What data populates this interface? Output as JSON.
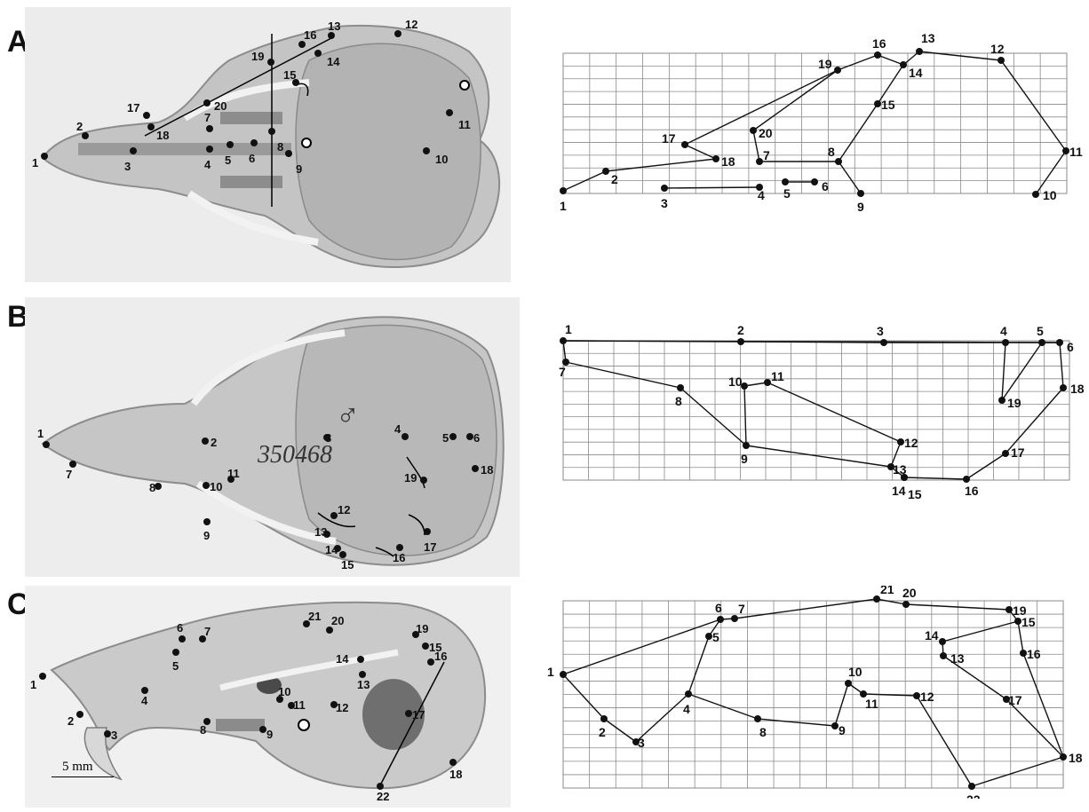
{
  "panels": [
    {
      "letter": "A",
      "photo_points": [
        {
          "label": "1"
        },
        {
          "label": "2"
        },
        {
          "label": "3"
        },
        {
          "label": "4"
        },
        {
          "label": "5"
        },
        {
          "label": "6"
        },
        {
          "label": "7"
        },
        {
          "label": "8"
        },
        {
          "label": "9"
        },
        {
          "label": "10"
        },
        {
          "label": "11"
        },
        {
          "label": "12"
        },
        {
          "label": "13"
        },
        {
          "label": "14"
        },
        {
          "label": "15"
        },
        {
          "label": "16"
        },
        {
          "label": "17"
        },
        {
          "label": "18"
        },
        {
          "label": "19"
        },
        {
          "label": "20"
        }
      ],
      "grid_points": [
        {
          "label": "1"
        },
        {
          "label": "2"
        },
        {
          "label": "3"
        },
        {
          "label": "4"
        },
        {
          "label": "5"
        },
        {
          "label": "6"
        },
        {
          "label": "7"
        },
        {
          "label": "8"
        },
        {
          "label": "9"
        },
        {
          "label": "10"
        },
        {
          "label": "11"
        },
        {
          "label": "12"
        },
        {
          "label": "13"
        },
        {
          "label": "14"
        },
        {
          "label": "15"
        },
        {
          "label": "16"
        },
        {
          "label": "17"
        },
        {
          "label": "18"
        },
        {
          "label": "19"
        },
        {
          "label": "20"
        }
      ]
    },
    {
      "letter": "B",
      "specimen_label": "350468",
      "sex_symbol": "♂",
      "photo_points": [
        {
          "label": "1"
        },
        {
          "label": "2"
        },
        {
          "label": "3"
        },
        {
          "label": "4"
        },
        {
          "label": "5"
        },
        {
          "label": "6"
        },
        {
          "label": "7"
        },
        {
          "label": "8"
        },
        {
          "label": "9"
        },
        {
          "label": "10"
        },
        {
          "label": "11"
        },
        {
          "label": "12"
        },
        {
          "label": "13"
        },
        {
          "label": "14"
        },
        {
          "label": "15"
        },
        {
          "label": "16"
        },
        {
          "label": "17"
        },
        {
          "label": "18"
        },
        {
          "label": "19"
        }
      ],
      "grid_points": [
        {
          "label": "1"
        },
        {
          "label": "2"
        },
        {
          "label": "3"
        },
        {
          "label": "4"
        },
        {
          "label": "5"
        },
        {
          "label": "6"
        },
        {
          "label": "7"
        },
        {
          "label": "8"
        },
        {
          "label": "9"
        },
        {
          "label": "10"
        },
        {
          "label": "11"
        },
        {
          "label": "12"
        },
        {
          "label": "13"
        },
        {
          "label": "14"
        },
        {
          "label": "15"
        },
        {
          "label": "16"
        },
        {
          "label": "17"
        },
        {
          "label": "18"
        },
        {
          "label": "19"
        }
      ]
    },
    {
      "letter": "C",
      "photo_points": [
        {
          "label": "1"
        },
        {
          "label": "2"
        },
        {
          "label": "3"
        },
        {
          "label": "4"
        },
        {
          "label": "5"
        },
        {
          "label": "6"
        },
        {
          "label": "7"
        },
        {
          "label": "8"
        },
        {
          "label": "9"
        },
        {
          "label": "10"
        },
        {
          "label": "11"
        },
        {
          "label": "12"
        },
        {
          "label": "13"
        },
        {
          "label": "14"
        },
        {
          "label": "15"
        },
        {
          "label": "16"
        },
        {
          "label": "17"
        },
        {
          "label": "18"
        },
        {
          "label": "19"
        },
        {
          "label": "20"
        },
        {
          "label": "21"
        },
        {
          "label": "22"
        }
      ],
      "grid_points": [
        {
          "label": "1"
        },
        {
          "label": "2"
        },
        {
          "label": "3"
        },
        {
          "label": "4"
        },
        {
          "label": "5"
        },
        {
          "label": "6"
        },
        {
          "label": "7"
        },
        {
          "label": "8"
        },
        {
          "label": "9"
        },
        {
          "label": "10"
        },
        {
          "label": "11"
        },
        {
          "label": "12"
        },
        {
          "label": "13"
        },
        {
          "label": "14"
        },
        {
          "label": "15"
        },
        {
          "label": "16"
        },
        {
          "label": "17"
        },
        {
          "label": "18"
        },
        {
          "label": "19"
        },
        {
          "label": "20"
        },
        {
          "label": "21"
        },
        {
          "label": "22"
        }
      ]
    }
  ],
  "scale_bar": {
    "label": "5 mm"
  },
  "colors": {
    "point": "#111111",
    "grid": "#8a8a8a",
    "line": "#111111",
    "photo_bg": "#e9e9e9"
  }
}
